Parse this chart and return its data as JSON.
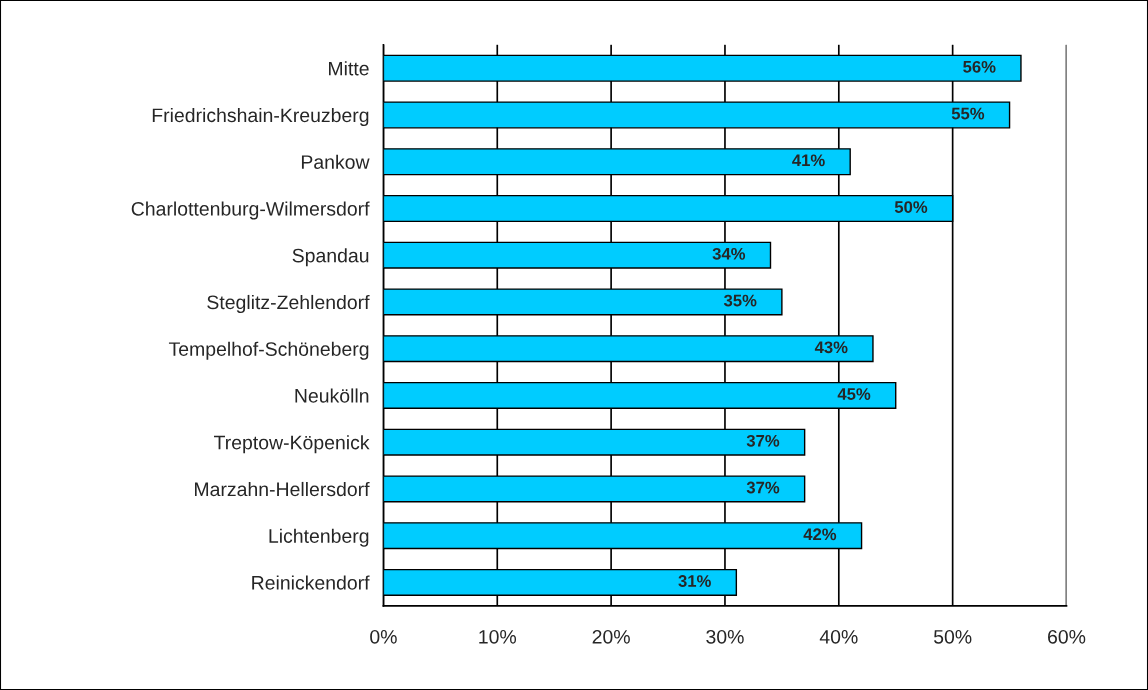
{
  "chart_data": {
    "type": "bar",
    "orientation": "horizontal",
    "categories": [
      "Mitte",
      "Friedrichshain-Kreuzberg",
      "Pankow",
      "Charlottenburg-Wilmersdorf",
      "Spandau",
      "Steglitz-Zehlendorf",
      "Tempelhof-Schöneberg",
      "Neukölln",
      "Treptow-Köpenick",
      "Marzahn-Hellersdorf",
      "Lichtenberg",
      "Reinickendorf"
    ],
    "values": [
      56,
      55,
      41,
      50,
      34,
      35,
      43,
      45,
      37,
      37,
      42,
      31
    ],
    "value_labels": [
      "56%",
      "55%",
      "41%",
      "50%",
      "34%",
      "35%",
      "43%",
      "45%",
      "37%",
      "37%",
      "42%",
      "31%"
    ],
    "color": "#00ccff",
    "xlim": [
      0,
      60
    ],
    "xticks": [
      {
        "value": 0,
        "label": "0%"
      },
      {
        "value": 10,
        "label": "10%"
      },
      {
        "value": 20,
        "label": "20%"
      },
      {
        "value": 30,
        "label": "30%"
      },
      {
        "value": 40,
        "label": "40%"
      },
      {
        "value": 50,
        "label": "50%"
      },
      {
        "value": 60,
        "label": "60%"
      }
    ],
    "grid": "x",
    "legend": false
  }
}
